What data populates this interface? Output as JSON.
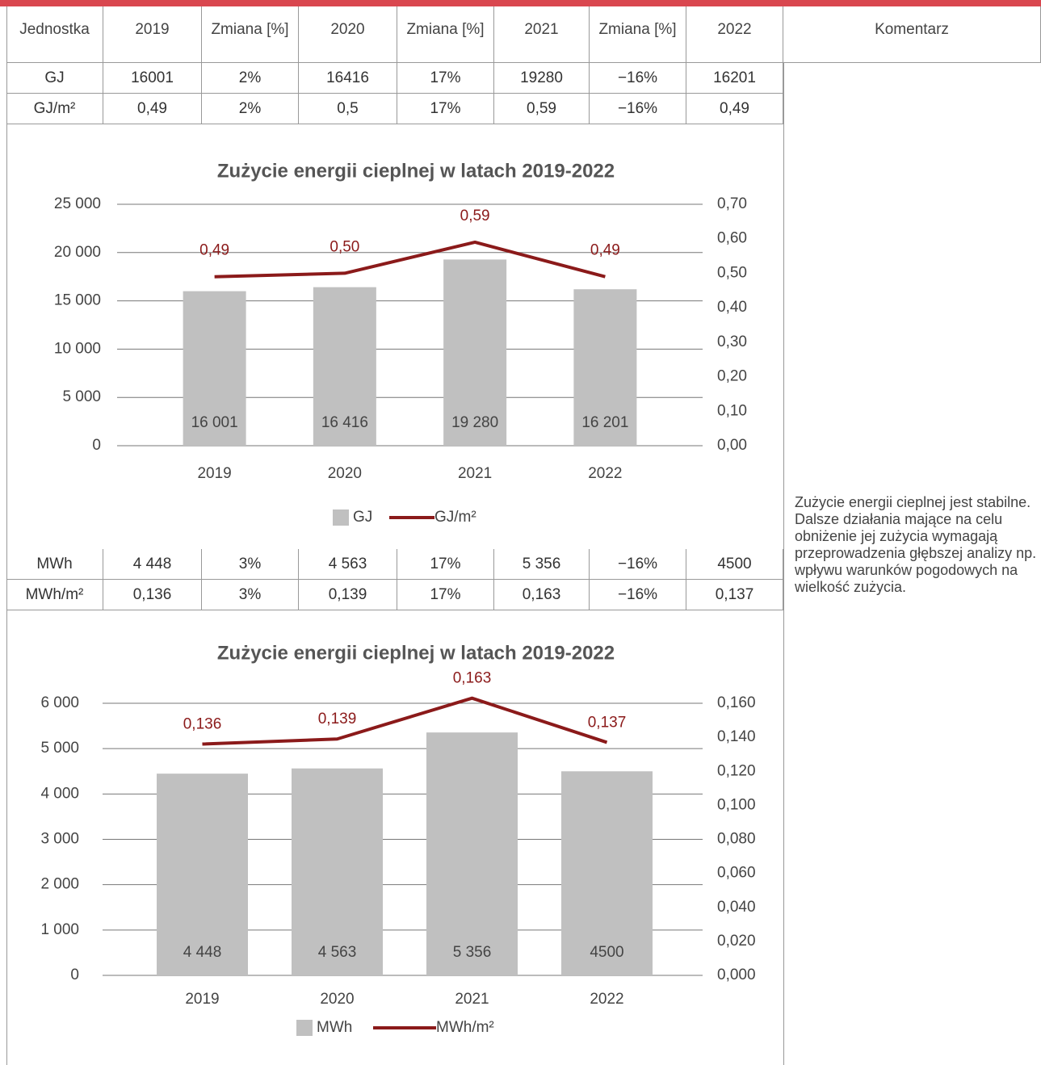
{
  "table": {
    "header": [
      "Jednostka",
      "2019",
      "Zmiana [%]",
      "2020",
      "Zmiana [%]",
      "2021",
      "Zmiana [%]",
      "2022",
      "Komentarz"
    ],
    "rows": [
      [
        "GJ",
        "16001",
        "2%",
        "16416",
        "17%",
        "19280",
        "−16%",
        "16201"
      ],
      [
        "GJ/m²",
        "0,49",
        "2%",
        "0,5",
        "17%",
        "0,59",
        "−16%",
        "0,49"
      ],
      [
        "MWh",
        "4 448",
        "3%",
        "4 563",
        "17%",
        "5 356",
        "−16%",
        "4500"
      ],
      [
        "MWh/m²",
        "0,136",
        "3%",
        "0,139",
        "17%",
        "0,163",
        "−16%",
        "0,137"
      ]
    ]
  },
  "comment": "Zużycie energii cieplnej jest stabilne. Dalsze działania mające na celu obniżenie jej zużycia wymagają przeprowadzenia głębszej analizy np. wpływu warunków pogodowych na wielkość zużycia.",
  "chart_data": [
    {
      "type": "bar",
      "title": "Zużycie energii cieplnej w latach 2019-2022",
      "categories": [
        "2019",
        "2020",
        "2021",
        "2022"
      ],
      "series": [
        {
          "name": "GJ",
          "color": "#c0c0c0",
          "values": [
            16001,
            16416,
            19280,
            16201
          ],
          "value_labels": [
            "16 001",
            "16 416",
            "19 280",
            "16 201"
          ]
        },
        {
          "name": "GJ/m²",
          "type": "line",
          "axis": "y2",
          "color": "#8b1a1a",
          "values": [
            0.49,
            0.5,
            0.59,
            0.49
          ],
          "value_labels": [
            "0,49",
            "0,50",
            "0,59",
            "0,49"
          ]
        }
      ],
      "ylim": [
        0,
        25000
      ],
      "yticks": [
        0,
        {
          "value": 5000,
          "label": "5 000"
        },
        {
          "value": 10000,
          "label": "10 000"
        },
        {
          "value": 15000,
          "label": "15 000"
        },
        {
          "value": 20000,
          "label": "20 000"
        },
        {
          "value": 25000,
          "label": "25 000"
        }
      ],
      "y2lim": [
        0,
        0.7
      ],
      "y2ticks": [
        {
          "value": 0,
          "label": "0,00"
        },
        {
          "value": 0.1,
          "label": "0,10"
        },
        {
          "value": 0.2,
          "label": "0,20"
        },
        {
          "value": 0.3,
          "label": "0,30"
        },
        {
          "value": 0.4,
          "label": "0,40"
        },
        {
          "value": 0.5,
          "label": "0,50"
        },
        {
          "value": 0.6,
          "label": "0,60"
        },
        {
          "value": 0.7,
          "label": "0,70"
        }
      ],
      "grid": true,
      "legend": "bottom"
    },
    {
      "type": "bar",
      "title": "Zużycie energii cieplnej w latach 2019-2022",
      "categories": [
        "2019",
        "2020",
        "2021",
        "2022"
      ],
      "series": [
        {
          "name": "MWh",
          "color": "#c0c0c0",
          "values": [
            4448,
            4563,
            5356,
            4500
          ],
          "value_labels": [
            "4 448",
            "4 563",
            "5 356",
            "4500"
          ]
        },
        {
          "name": "MWh/m²",
          "type": "line",
          "axis": "y2",
          "color": "#8b1a1a",
          "values": [
            0.136,
            0.139,
            0.163,
            0.137
          ],
          "value_labels": [
            "0,136",
            "0,139",
            "0,163",
            "0,137"
          ]
        }
      ],
      "ylim": [
        0,
        6000
      ],
      "yticks": [
        0,
        {
          "value": 1000,
          "label": "1 000"
        },
        {
          "value": 2000,
          "label": "2 000"
        },
        {
          "value": 3000,
          "label": "3 000"
        },
        {
          "value": 4000,
          "label": "4 000"
        },
        {
          "value": 5000,
          "label": "5 000"
        },
        {
          "value": 6000,
          "label": "6 000"
        }
      ],
      "y2lim": [
        0,
        0.16
      ],
      "y2ticks": [
        {
          "value": 0,
          "label": "0,000"
        },
        {
          "value": 0.02,
          "label": "0,020"
        },
        {
          "value": 0.04,
          "label": "0,040"
        },
        {
          "value": 0.06,
          "label": "0,060"
        },
        {
          "value": 0.08,
          "label": "0,080"
        },
        {
          "value": 0.1,
          "label": "0,100"
        },
        {
          "value": 0.12,
          "label": "0,120"
        },
        {
          "value": 0.14,
          "label": "0,140"
        },
        {
          "value": 0.16,
          "label": "0,160"
        }
      ],
      "grid": true,
      "legend": "bottom"
    }
  ]
}
